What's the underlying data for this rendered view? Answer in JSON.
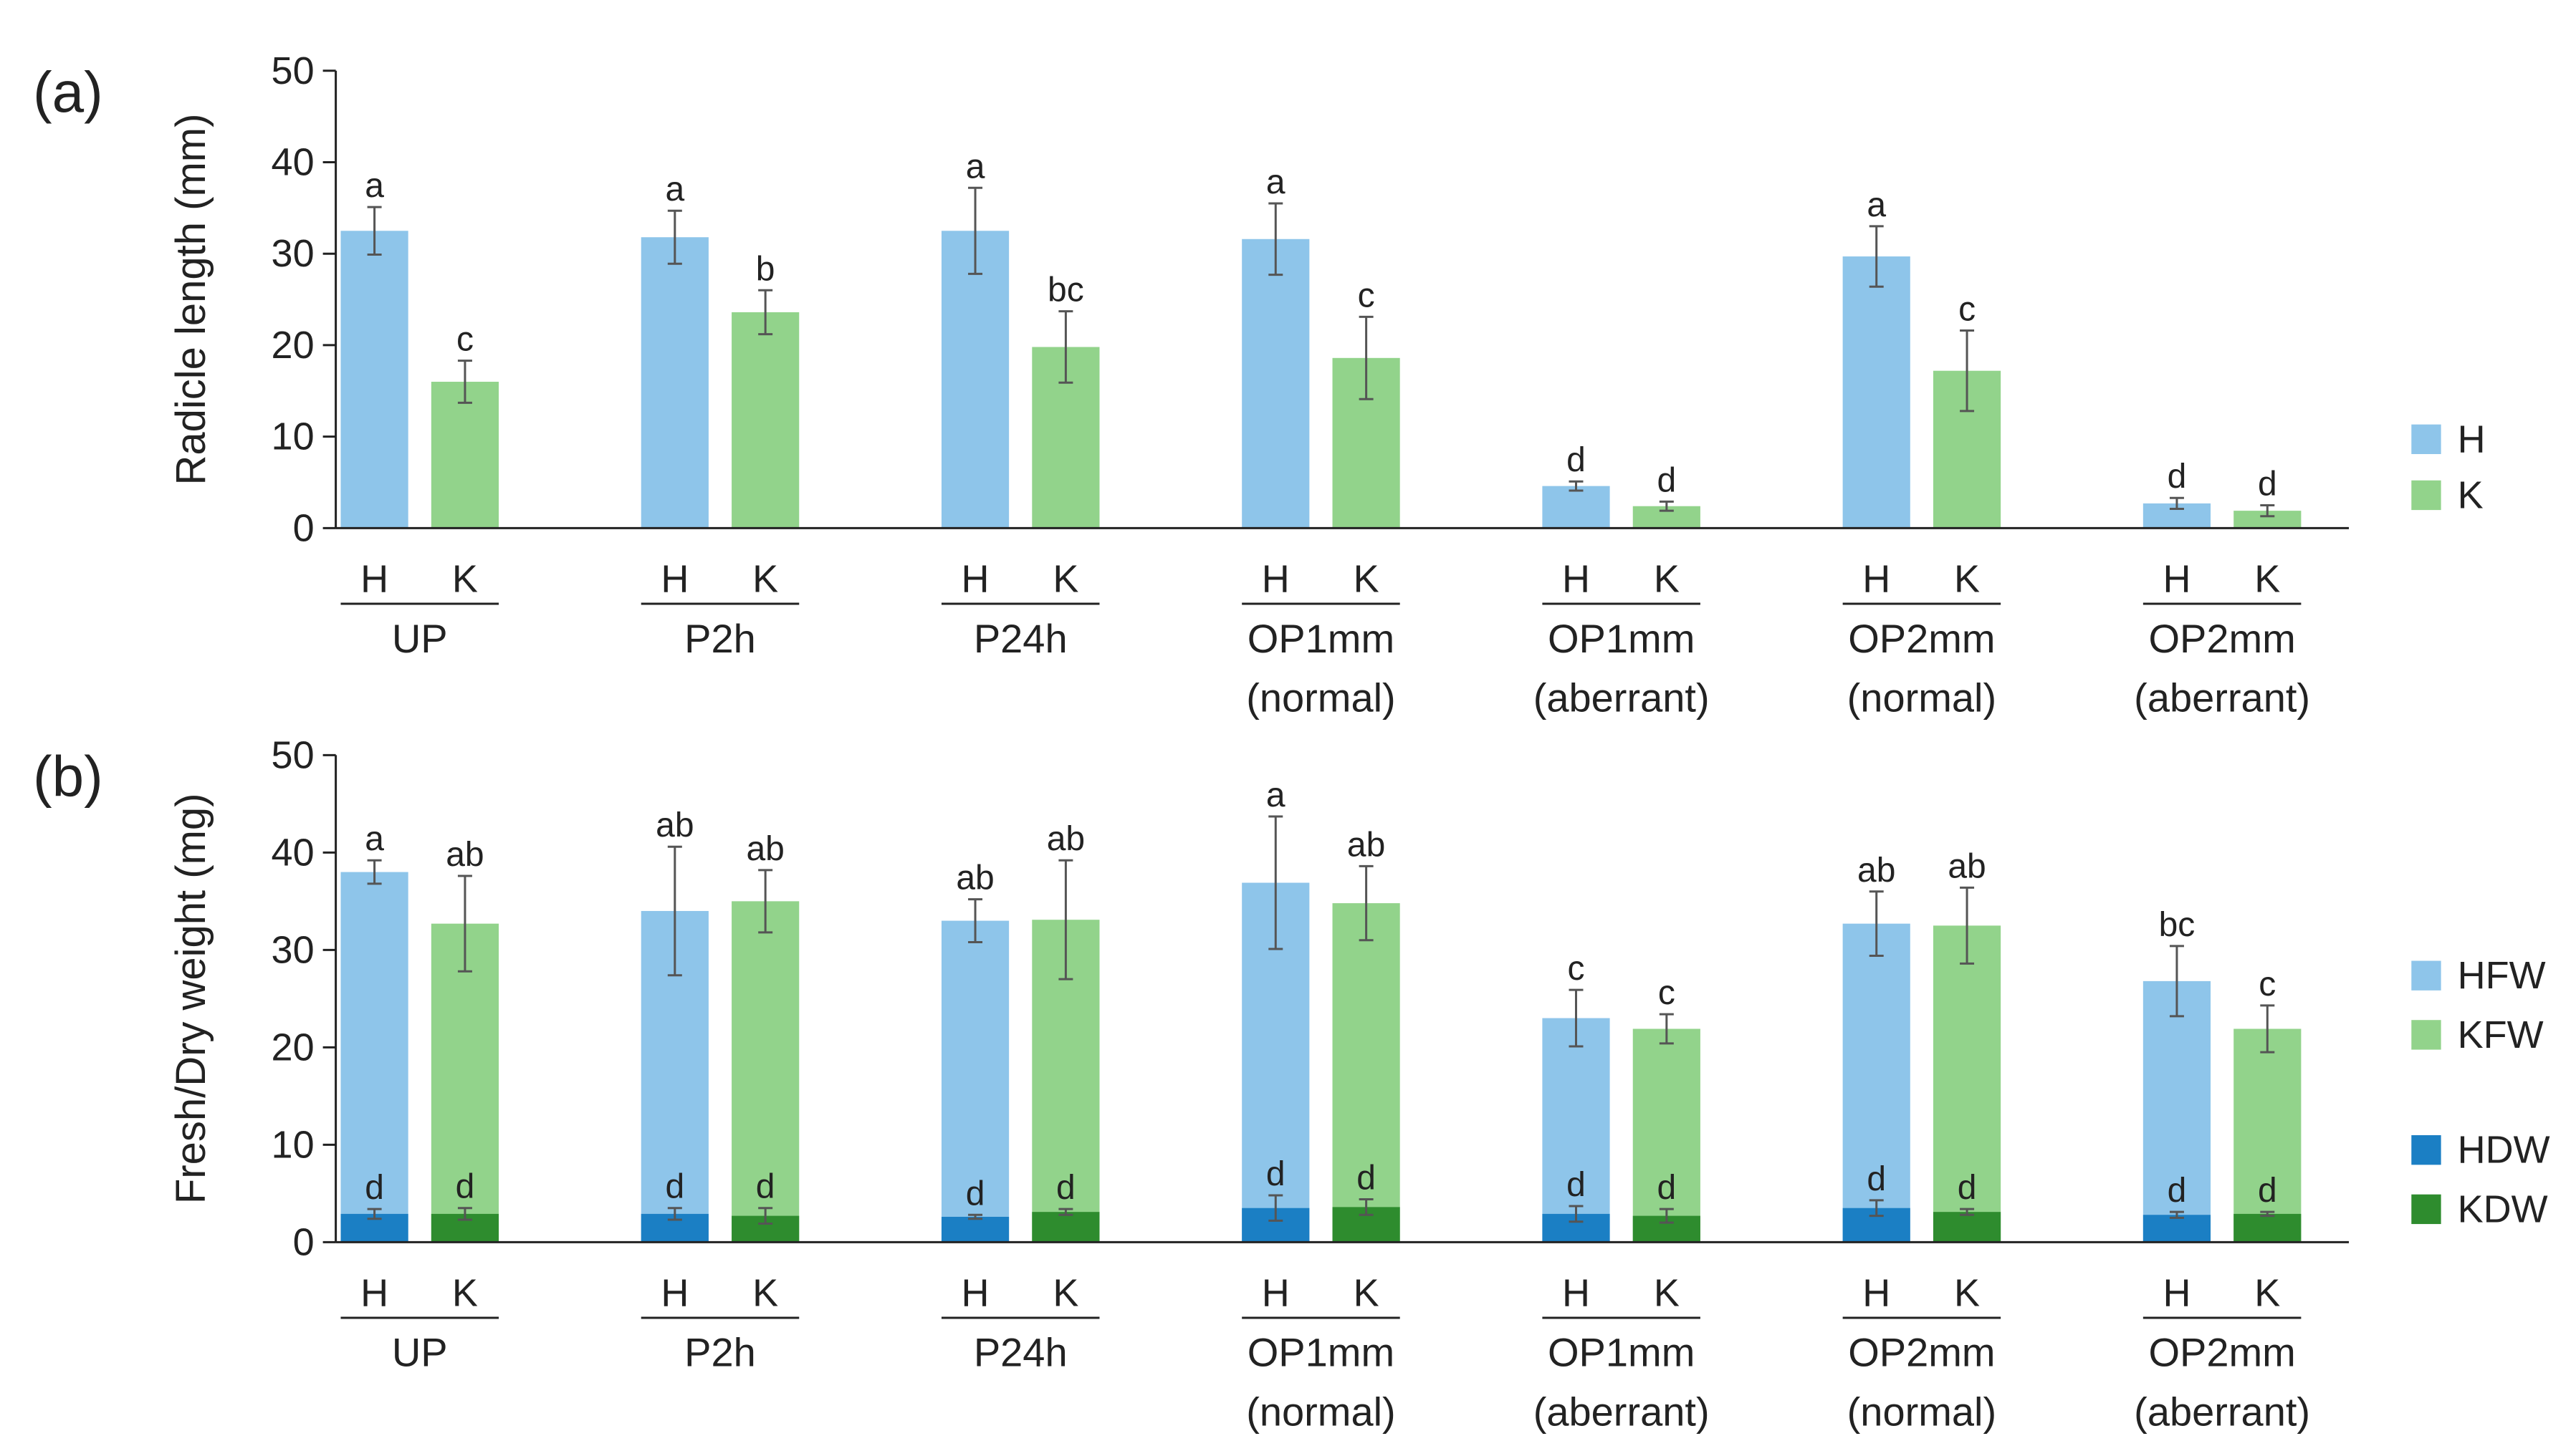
{
  "chart_data": [
    {
      "type": "bar",
      "panel": "(a)",
      "ylabel": "Radicle length (mm)",
      "ylim": [
        0,
        50
      ],
      "yticks": [
        0,
        10,
        20,
        30,
        40,
        50
      ],
      "genotype_labels": [
        "H",
        "K"
      ],
      "groups": [
        {
          "line1": "UP",
          "line2": ""
        },
        {
          "line1": "P2h",
          "line2": ""
        },
        {
          "line1": "P24h",
          "line2": ""
        },
        {
          "line1": "OP1mm",
          "line2": "(normal)"
        },
        {
          "line1": "OP1mm",
          "line2": "(aberrant)"
        },
        {
          "line1": "OP2mm",
          "line2": "(normal)"
        },
        {
          "line1": "OP2mm",
          "line2": "(aberrant)"
        }
      ],
      "series": [
        {
          "name": "H",
          "color": "#8ec5ea",
          "values": [
            32.5,
            31.8,
            32.5,
            31.6,
            4.6,
            29.7,
            2.7
          ],
          "errors": [
            2.6,
            2.9,
            4.7,
            3.9,
            0.5,
            3.3,
            0.6
          ],
          "labels": [
            "a",
            "a",
            "a",
            "a",
            "d",
            "a",
            "d"
          ]
        },
        {
          "name": "K",
          "color": "#92d38b",
          "values": [
            16.0,
            23.6,
            19.8,
            18.6,
            2.4,
            17.2,
            1.9
          ],
          "errors": [
            2.3,
            2.4,
            3.9,
            4.5,
            0.5,
            4.4,
            0.6
          ],
          "labels": [
            "c",
            "b",
            "bc",
            "c",
            "d",
            "c",
            "d"
          ]
        }
      ]
    },
    {
      "type": "bar",
      "panel": "(b)",
      "ylabel": "Fresh/Dry weight (mg)",
      "ylim": [
        0,
        50
      ],
      "yticks": [
        0,
        10,
        20,
        30,
        40,
        50
      ],
      "genotype_labels": [
        "H",
        "K"
      ],
      "groups": [
        {
          "line1": "UP",
          "line2": ""
        },
        {
          "line1": "P2h",
          "line2": ""
        },
        {
          "line1": "P24h",
          "line2": ""
        },
        {
          "line1": "OP1mm",
          "line2": "(normal)"
        },
        {
          "line1": "OP1mm",
          "line2": "(aberrant)"
        },
        {
          "line1": "OP2mm",
          "line2": "(normal)"
        },
        {
          "line1": "OP2mm",
          "line2": "(aberrant)"
        }
      ],
      "series": [
        {
          "name": "HFW",
          "color": "#8ec5ea",
          "values": [
            38.0,
            34.0,
            33.0,
            36.9,
            23.0,
            32.7,
            26.8
          ],
          "errors": [
            1.2,
            6.6,
            2.2,
            6.8,
            2.9,
            3.3,
            3.6
          ],
          "labels": [
            "a",
            "ab",
            "ab",
            "a",
            "c",
            "ab",
            "bc"
          ]
        },
        {
          "name": "KFW",
          "color": "#92d38b",
          "values": [
            32.7,
            35.0,
            33.1,
            34.8,
            21.9,
            32.5,
            21.9
          ],
          "errors": [
            4.9,
            3.2,
            6.1,
            3.8,
            1.5,
            3.9,
            2.4
          ],
          "labels": [
            "ab",
            "ab",
            "ab",
            "ab",
            "c",
            "ab",
            "c"
          ]
        },
        {
          "name": "HDW",
          "color": "#1b7fc4",
          "values": [
            2.9,
            2.9,
            2.6,
            3.5,
            2.9,
            3.5,
            2.8
          ],
          "errors": [
            0.5,
            0.6,
            0.2,
            1.3,
            0.8,
            0.8,
            0.3
          ],
          "labels": [
            "d",
            "d",
            "d",
            "d",
            "d",
            "d",
            "d"
          ]
        },
        {
          "name": "KDW",
          "color": "#2e8c2e",
          "values": [
            2.9,
            2.7,
            3.1,
            3.6,
            2.7,
            3.1,
            2.9
          ],
          "errors": [
            0.6,
            0.8,
            0.3,
            0.8,
            0.7,
            0.3,
            0.2
          ],
          "labels": [
            "d",
            "d",
            "d",
            "d",
            "d",
            "d",
            "d"
          ]
        }
      ]
    }
  ]
}
